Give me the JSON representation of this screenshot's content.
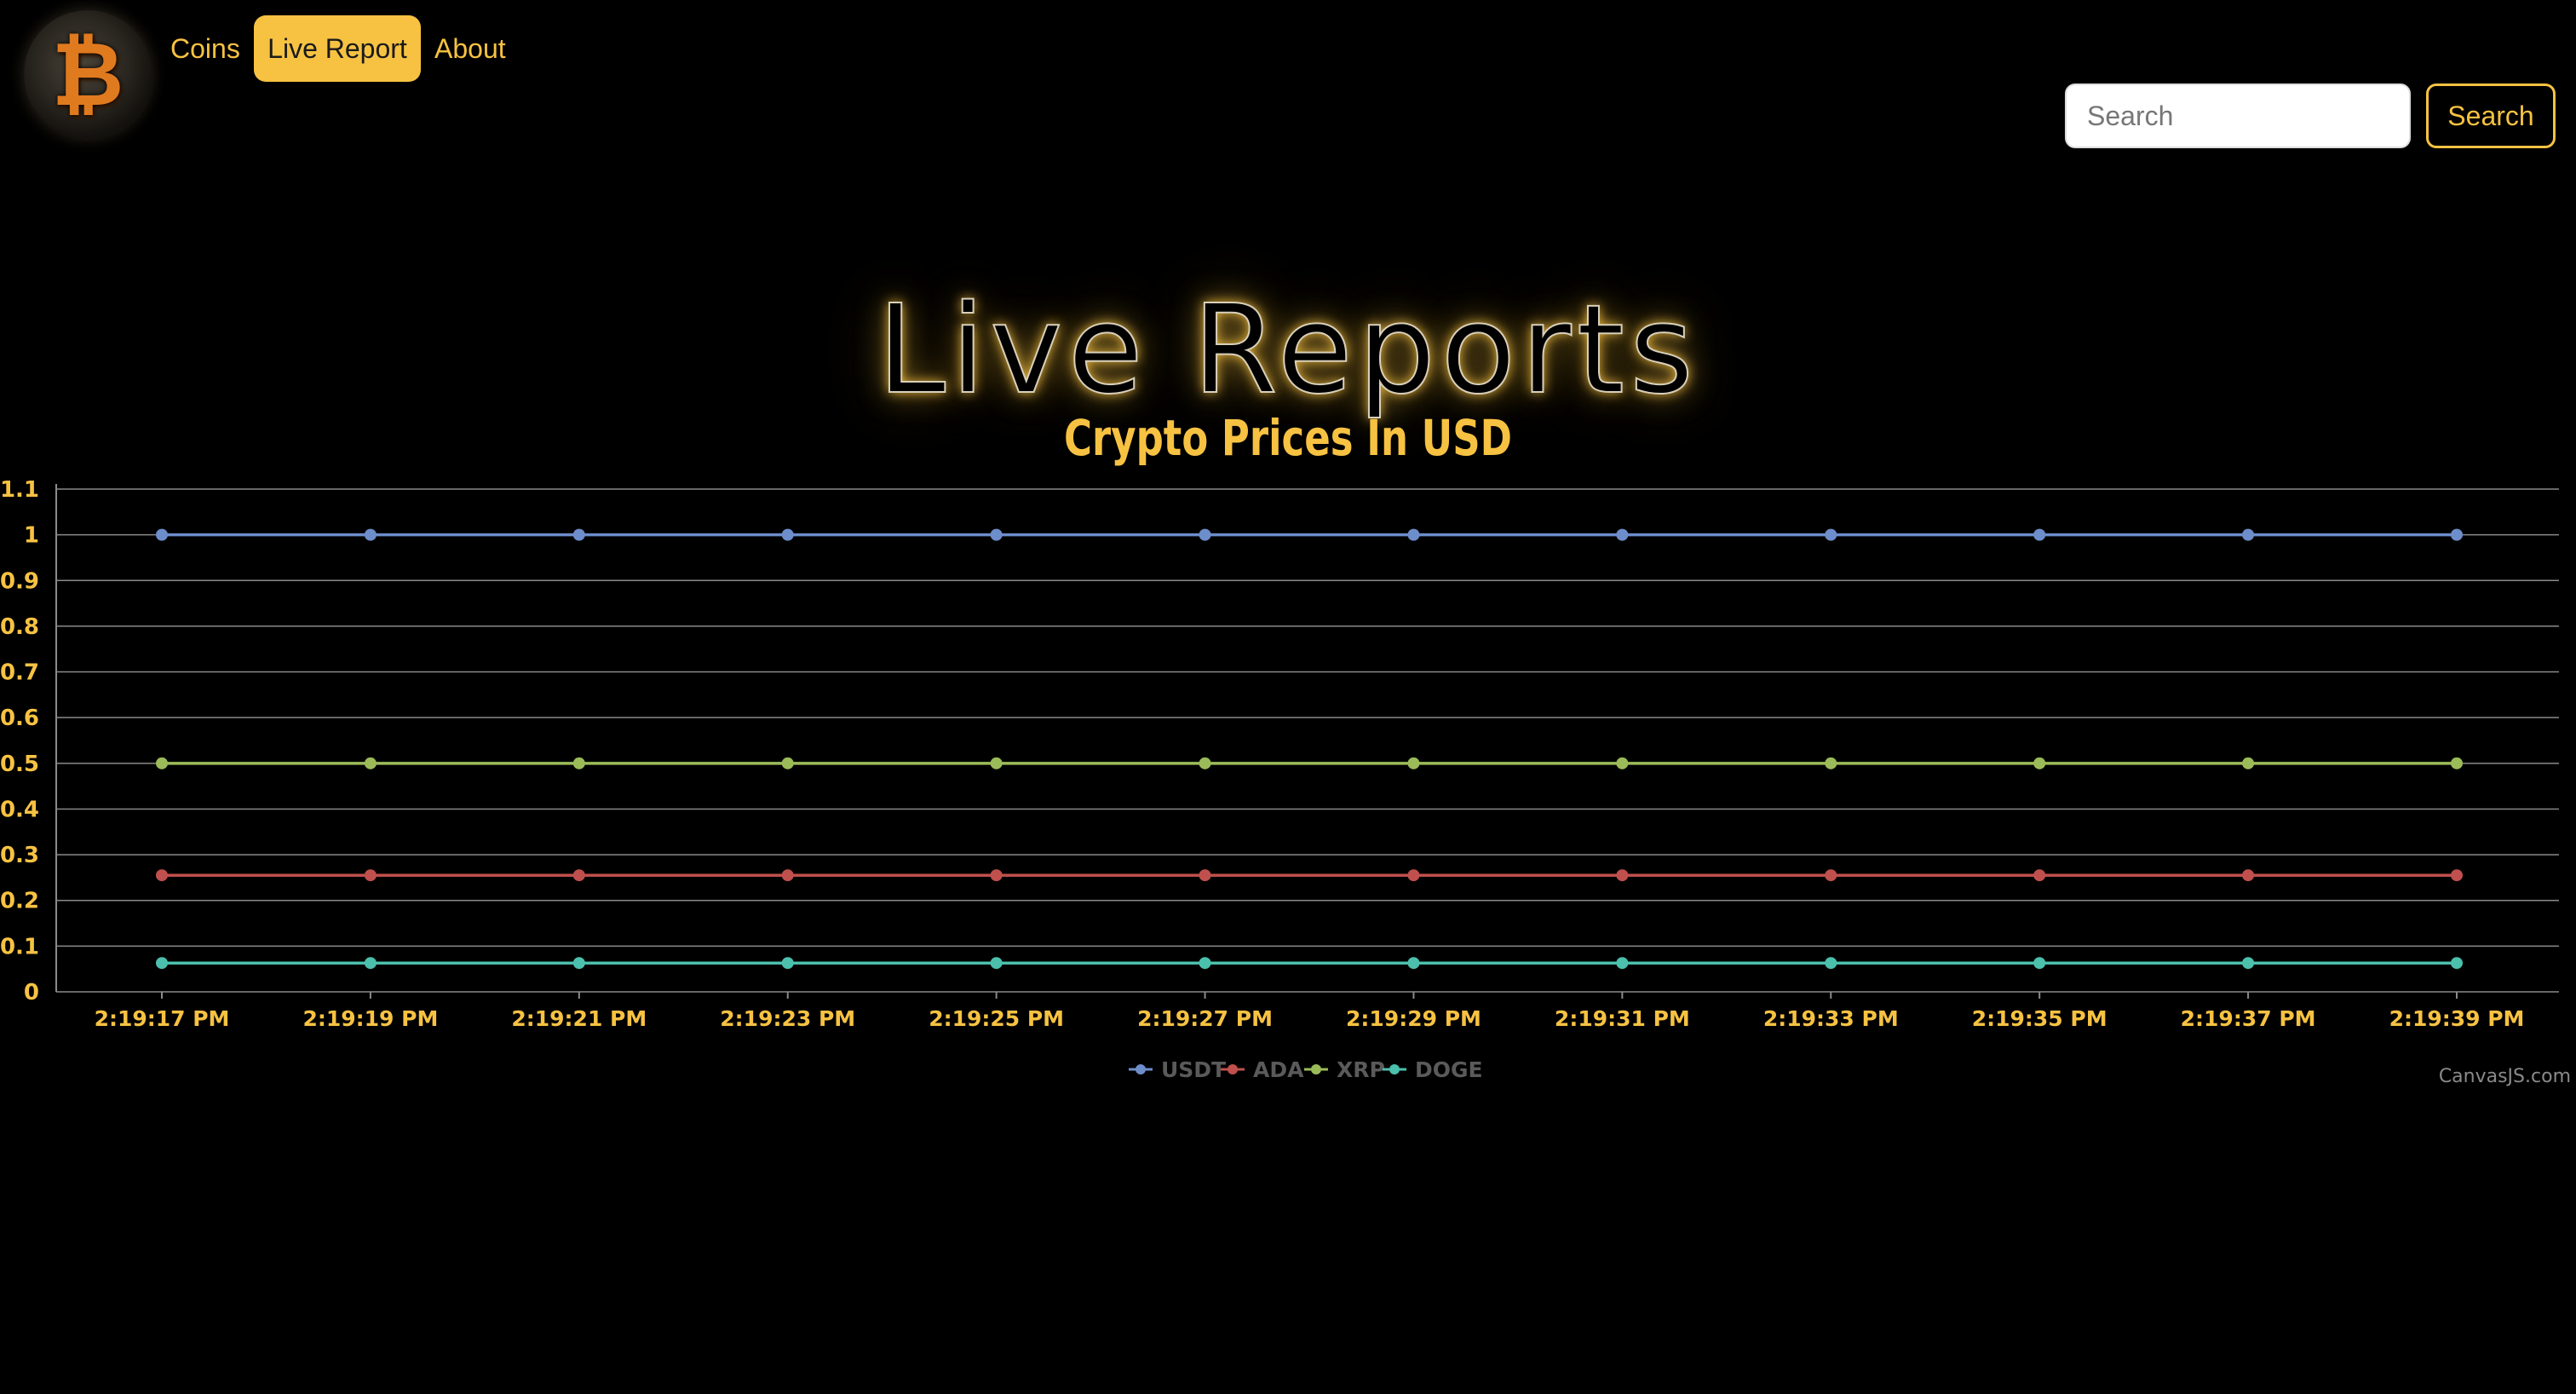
{
  "navbar": {
    "links": [
      {
        "label": "Coins",
        "active": false
      },
      {
        "label": "Live Report",
        "active": true
      },
      {
        "label": "About",
        "active": false
      }
    ],
    "logo_icon": "bitcoin-logo-icon",
    "search": {
      "placeholder": "Search",
      "value": "",
      "button_label": "Search"
    }
  },
  "page": {
    "title": "Live Reports"
  },
  "colors": {
    "accent": "#f7c242",
    "background": "#000000",
    "usdt": "#6d8dcb",
    "ada": "#c0504d",
    "xrp": "#9bbb59",
    "doge": "#4bc0ad"
  },
  "chart_data": {
    "type": "line",
    "title": "Crypto Prices In USD",
    "x": [
      "2:19:17 PM",
      "2:19:19 PM",
      "2:19:21 PM",
      "2:19:23 PM",
      "2:19:25 PM",
      "2:19:27 PM",
      "2:19:29 PM",
      "2:19:31 PM",
      "2:19:33 PM",
      "2:19:35 PM",
      "2:19:37 PM",
      "2:19:39 PM"
    ],
    "ylim": [
      0,
      1.1
    ],
    "yticks": [
      "0",
      "0.1",
      "0.2",
      "0.3",
      "0.4",
      "0.5",
      "0.6",
      "0.7",
      "0.8",
      "0.9",
      "1",
      "1.1"
    ],
    "grid": true,
    "legend_position": "bottom-center",
    "credit": "CanvasJS.com",
    "series": [
      {
        "name": "USDT",
        "values": [
          1.0,
          1.0,
          1.0,
          1.0,
          1.0,
          1.0,
          1.0,
          1.0,
          1.0,
          1.0,
          1.0,
          1.0
        ]
      },
      {
        "name": "ADA",
        "values": [
          0.255,
          0.255,
          0.255,
          0.255,
          0.255,
          0.255,
          0.255,
          0.255,
          0.255,
          0.255,
          0.255,
          0.255
        ]
      },
      {
        "name": "XRP",
        "values": [
          0.5,
          0.5,
          0.5,
          0.5,
          0.5,
          0.5,
          0.5,
          0.5,
          0.5,
          0.5,
          0.5,
          0.5
        ]
      },
      {
        "name": "DOGE",
        "values": [
          0.063,
          0.063,
          0.063,
          0.063,
          0.063,
          0.063,
          0.063,
          0.063,
          0.063,
          0.063,
          0.063,
          0.063
        ]
      }
    ]
  }
}
